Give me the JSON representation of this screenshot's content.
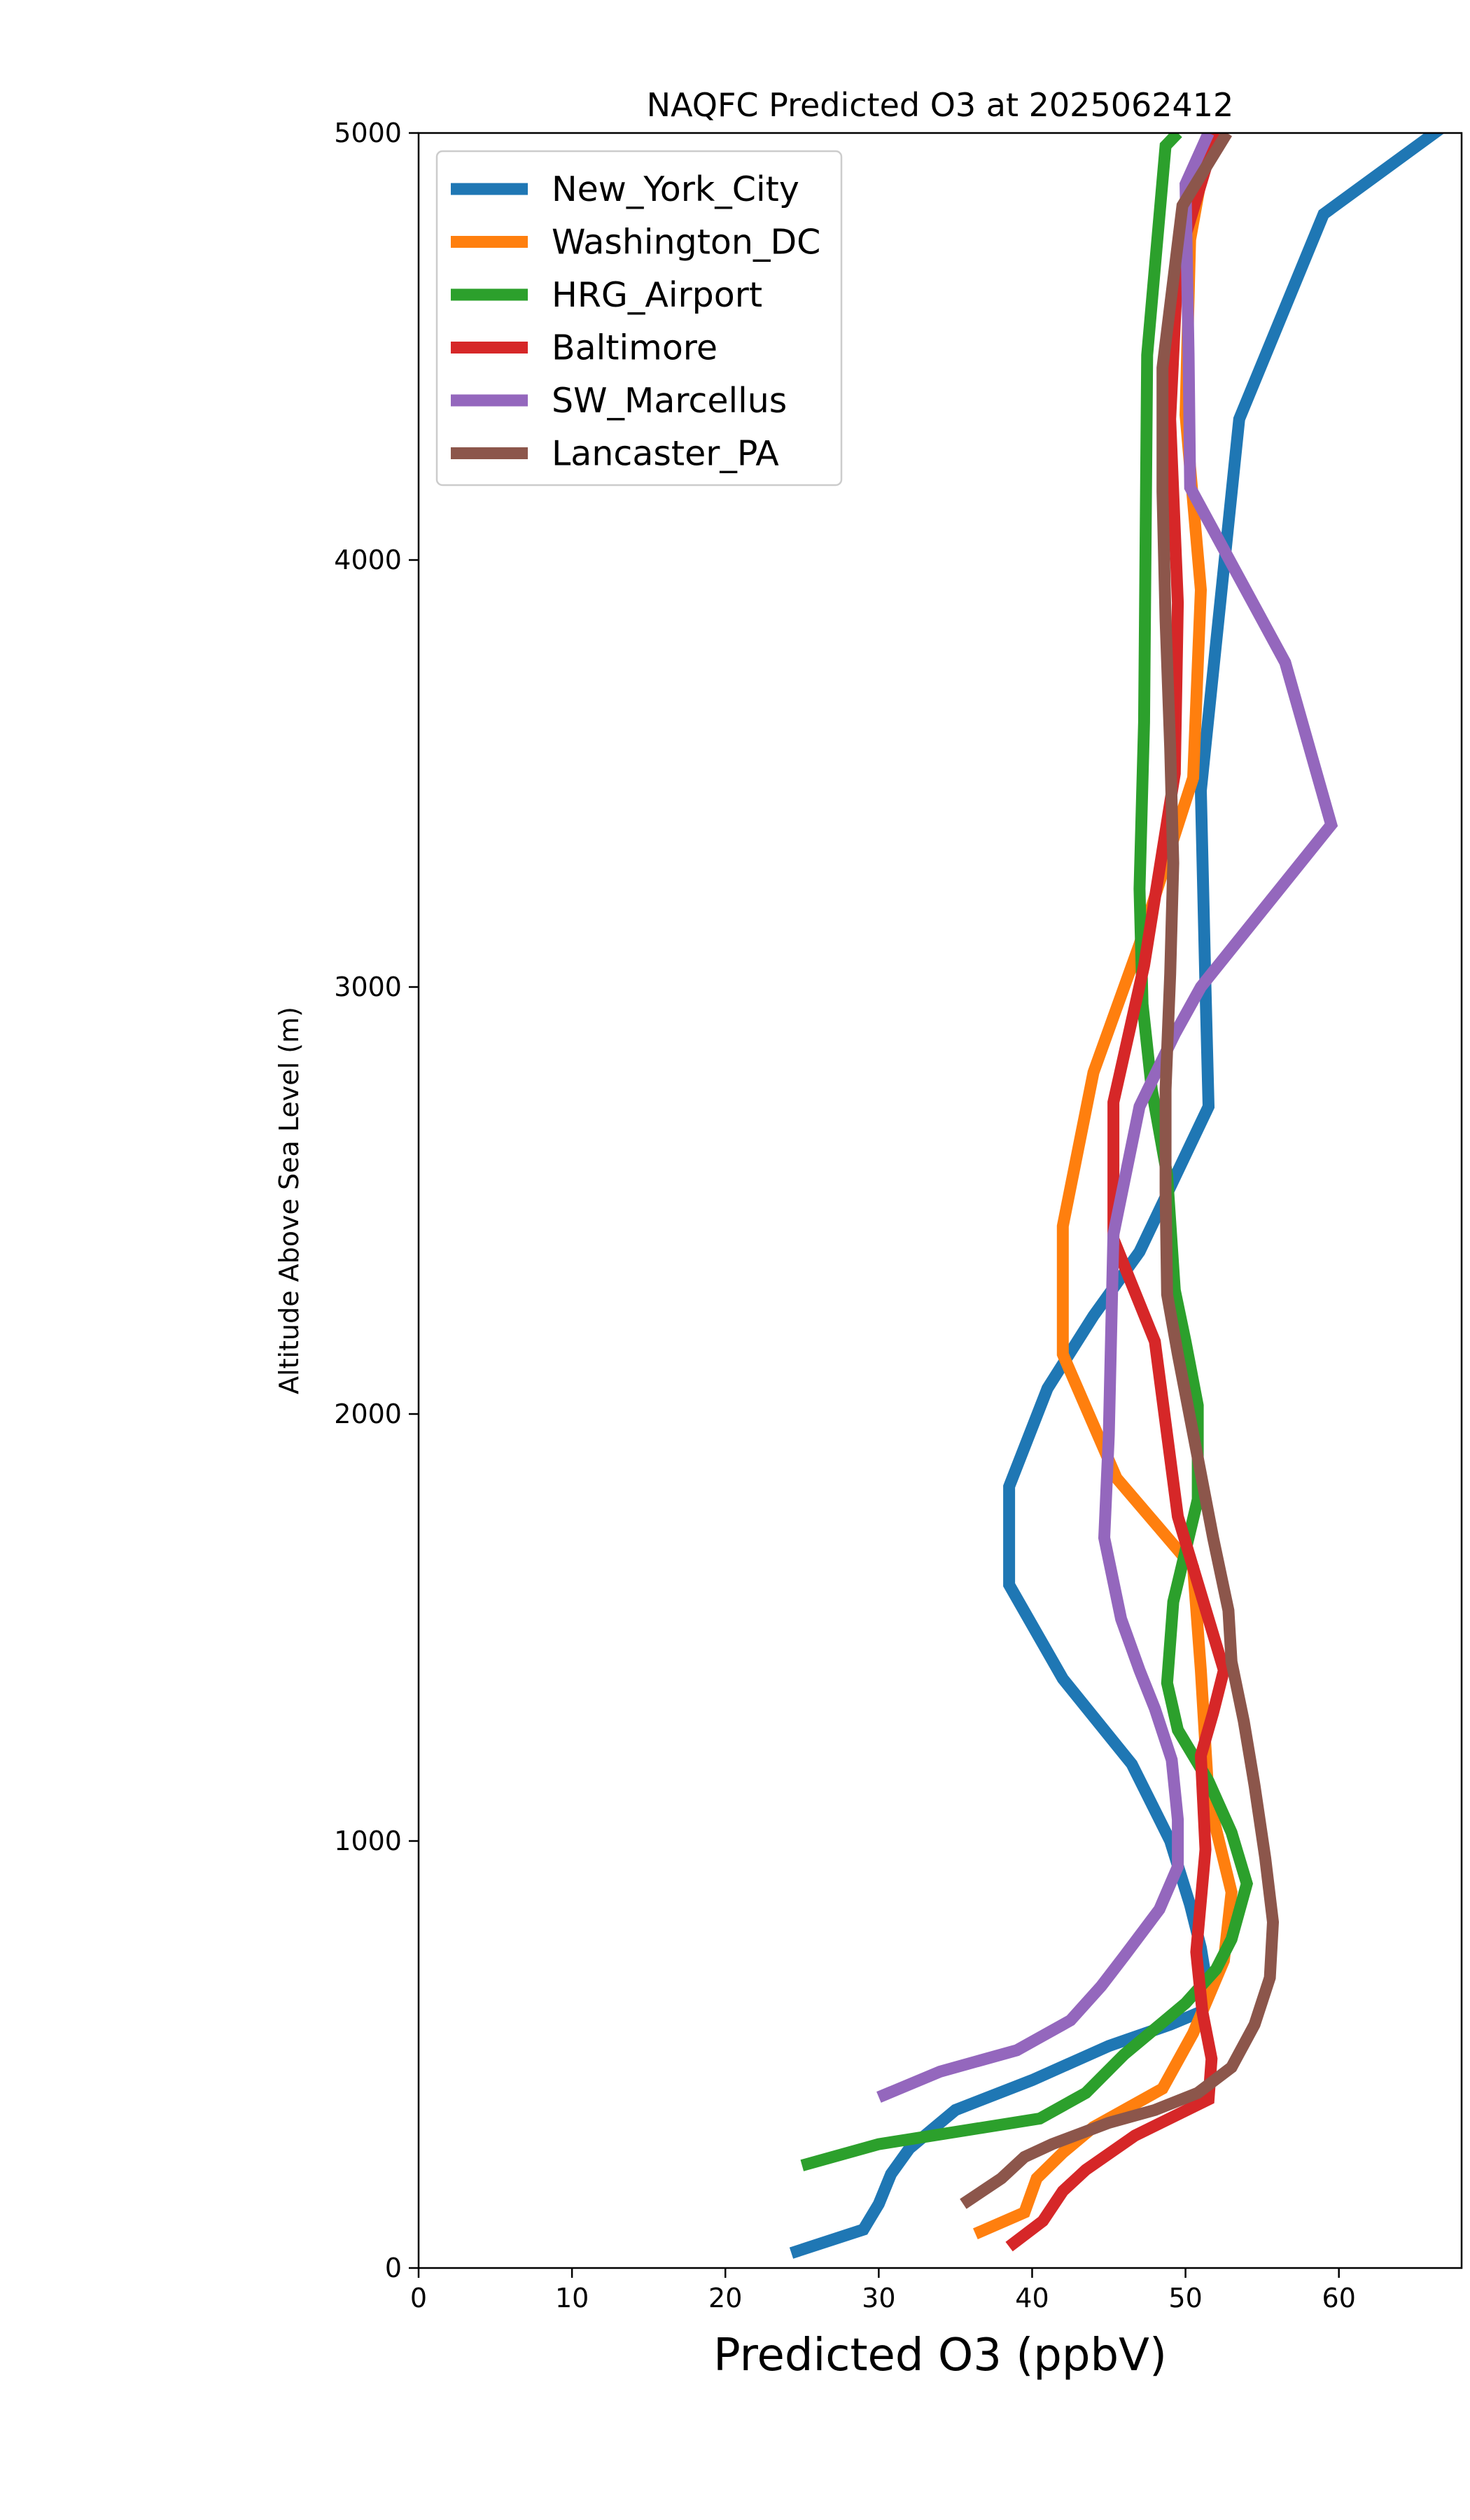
{
  "chart_data": {
    "type": "line",
    "title": "NAQFC Predicted O3 at 2025062412",
    "xlabel": "Predicted O3 (ppbV)",
    "ylabel": "Altitude Above Sea Level (m)",
    "xlim": [
      0,
      68
    ],
    "ylim": [
      0,
      5000
    ],
    "x_ticks": [
      0,
      10,
      20,
      30,
      40,
      50,
      60
    ],
    "y_ticks": [
      0,
      1000,
      2000,
      3000,
      4000,
      5000
    ],
    "grid": false,
    "legend_position": "upper-left",
    "series": [
      {
        "name": "New_York_City",
        "color": "#1f77b4",
        "points": [
          [
            24.3,
            35
          ],
          [
            29,
            90
          ],
          [
            30,
            150
          ],
          [
            30.8,
            220
          ],
          [
            32,
            280
          ],
          [
            35,
            370
          ],
          [
            40,
            440
          ],
          [
            45,
            520
          ],
          [
            49,
            570
          ],
          [
            51,
            600
          ],
          [
            51.5,
            640
          ],
          [
            51,
            750
          ],
          [
            50.3,
            850
          ],
          [
            49,
            1000
          ],
          [
            46.5,
            1180
          ],
          [
            42,
            1380
          ],
          [
            38.5,
            1600
          ],
          [
            38.5,
            1830
          ],
          [
            41,
            2060
          ],
          [
            44,
            2230
          ],
          [
            47,
            2380
          ],
          [
            51.5,
            2720
          ],
          [
            51.3,
            3000
          ],
          [
            51,
            3460
          ],
          [
            53.5,
            4330
          ],
          [
            59,
            4810
          ],
          [
            67,
            5020
          ]
        ]
      },
      {
        "name": "Washington_DC",
        "color": "#ff7f0e",
        "points": [
          [
            36.3,
            80
          ],
          [
            39.5,
            130
          ],
          [
            40.3,
            210
          ],
          [
            42,
            270
          ],
          [
            44,
            330
          ],
          [
            48.5,
            420
          ],
          [
            50.5,
            550
          ],
          [
            52.5,
            720
          ],
          [
            53,
            880
          ],
          [
            51.5,
            1100
          ],
          [
            51,
            1400
          ],
          [
            50.5,
            1640
          ],
          [
            45.5,
            1850
          ],
          [
            42,
            2140
          ],
          [
            42,
            2440
          ],
          [
            44,
            2800
          ],
          [
            47,
            3100
          ],
          [
            50.5,
            3490
          ],
          [
            51,
            3930
          ],
          [
            50,
            4340
          ],
          [
            50.3,
            4750
          ],
          [
            51.5,
            4990
          ]
        ]
      },
      {
        "name": "HRG_Airport",
        "color": "#2ca02c",
        "points": [
          [
            25,
            240
          ],
          [
            30,
            290
          ],
          [
            40.5,
            350
          ],
          [
            43.5,
            410
          ],
          [
            46,
            500
          ],
          [
            48,
            560
          ],
          [
            50,
            620
          ],
          [
            52,
            700
          ],
          [
            53,
            770
          ],
          [
            54,
            900
          ],
          [
            53,
            1020
          ],
          [
            51.5,
            1140
          ],
          [
            49.5,
            1260
          ],
          [
            48.8,
            1370
          ],
          [
            49.2,
            1560
          ],
          [
            50.8,
            1800
          ],
          [
            50.8,
            2020
          ],
          [
            50,
            2170
          ],
          [
            49.3,
            2290
          ],
          [
            48.8,
            2560
          ],
          [
            47.8,
            2760
          ],
          [
            47.2,
            2960
          ],
          [
            47,
            3230
          ],
          [
            47.3,
            3620
          ],
          [
            47.5,
            4480
          ],
          [
            48.7,
            4970
          ],
          [
            49.5,
            5000
          ]
        ]
      },
      {
        "name": "Baltimore",
        "color": "#d62728",
        "points": [
          [
            38.5,
            50
          ],
          [
            40.7,
            110
          ],
          [
            42,
            180
          ],
          [
            43.5,
            230
          ],
          [
            46.7,
            310
          ],
          [
            51.5,
            395
          ],
          [
            51.7,
            490
          ],
          [
            51.1,
            600
          ],
          [
            50.7,
            740
          ],
          [
            51.3,
            980
          ],
          [
            51,
            1200
          ],
          [
            51.8,
            1300
          ],
          [
            52.5,
            1400
          ],
          [
            49.5,
            1760
          ],
          [
            48,
            2170
          ],
          [
            45.3,
            2410
          ],
          [
            45.3,
            2730
          ],
          [
            47.3,
            3050
          ],
          [
            49.3,
            3500
          ],
          [
            49.5,
            3900
          ],
          [
            49,
            4330
          ],
          [
            49.5,
            4700
          ],
          [
            52,
            5000
          ]
        ]
      },
      {
        "name": "SW_Marcellus",
        "color": "#9467bd",
        "points": [
          [
            30,
            400
          ],
          [
            34,
            460
          ],
          [
            39,
            510
          ],
          [
            42.5,
            580
          ],
          [
            44.5,
            660
          ],
          [
            46,
            730
          ],
          [
            48.3,
            840
          ],
          [
            49.5,
            940
          ],
          [
            49.5,
            1050
          ],
          [
            49.1,
            1190
          ],
          [
            48,
            1310
          ],
          [
            47,
            1400
          ],
          [
            45.8,
            1520
          ],
          [
            44.7,
            1710
          ],
          [
            45,
            1950
          ],
          [
            45.3,
            2420
          ],
          [
            47,
            2720
          ],
          [
            49.3,
            2890
          ],
          [
            51,
            3000
          ],
          [
            59.5,
            3380
          ],
          [
            56.5,
            3760
          ],
          [
            50.3,
            4170
          ],
          [
            50.2,
            4480
          ],
          [
            50,
            4880
          ],
          [
            51.5,
            5000
          ]
        ]
      },
      {
        "name": "Lancaster_PA",
        "color": "#8c564b",
        "points": [
          [
            35.5,
            150
          ],
          [
            38,
            210
          ],
          [
            39.5,
            260
          ],
          [
            41.3,
            290
          ],
          [
            45,
            340
          ],
          [
            48,
            370
          ],
          [
            50.8,
            410
          ],
          [
            53,
            470
          ],
          [
            54.5,
            570
          ],
          [
            55.5,
            680
          ],
          [
            55.7,
            810
          ],
          [
            55.2,
            960
          ],
          [
            54.5,
            1130
          ],
          [
            53.8,
            1280
          ],
          [
            53,
            1420
          ],
          [
            52.8,
            1540
          ],
          [
            51.8,
            1710
          ],
          [
            51,
            1860
          ],
          [
            49.5,
            2140
          ],
          [
            48.8,
            2280
          ],
          [
            48.7,
            2520
          ],
          [
            48.7,
            2760
          ],
          [
            49,
            3030
          ],
          [
            49.2,
            3290
          ],
          [
            49,
            3560
          ],
          [
            48.7,
            3860
          ],
          [
            48.5,
            4160
          ],
          [
            48.5,
            4450
          ],
          [
            49.8,
            4830
          ],
          [
            52.7,
            5000
          ]
        ]
      }
    ]
  }
}
